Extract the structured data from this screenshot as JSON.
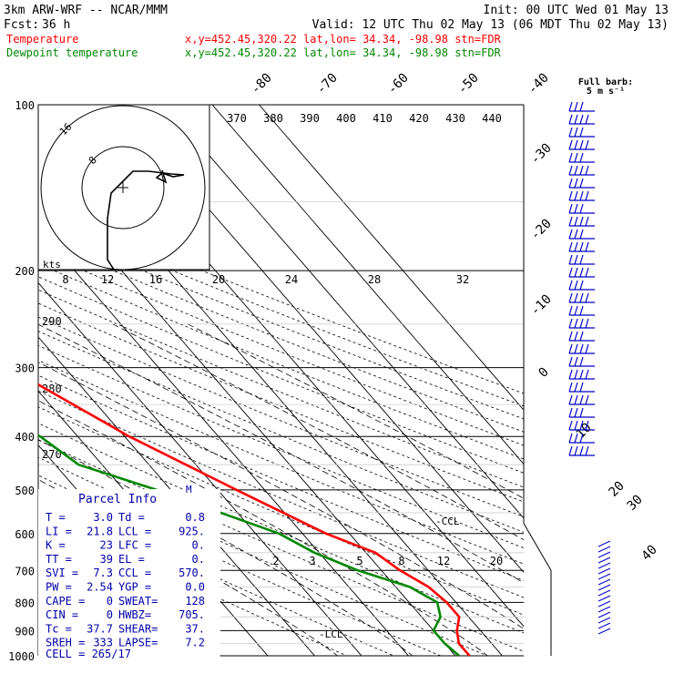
{
  "header": {
    "model": "3km ARW-WRF -- NCAR/MMM",
    "init": "Init: 00 UTC Wed 01 May 13",
    "fcst_label": "Fcst:",
    "fcst_value": "36 h",
    "valid": "Valid: 12 UTC Thu 02 May 13 (06 MDT Thu 02 May 13)",
    "temp_label": "Temperature",
    "temp_info": "x,y=452.45,320.22   lat,lon= 34.34, -98.98  stn=FDR",
    "dew_label": "Dewpoint temperature",
    "dew_info": "x,y=452.45,320.22   lat,lon= 34.34, -98.98  stn=FDR",
    "barb_title_1": "Full barb:",
    "barb_title_2": "5 m s⁻¹"
  },
  "colors": {
    "temperature": "#ff0000",
    "dewpoint": "#008800",
    "barbs": "#0000cc",
    "parcel": "#0000aa",
    "text": "#000000"
  },
  "chart_data": {
    "type": "line",
    "title": "Skew-T log-P sounding, stn=FDR",
    "pressure_levels": [
      100,
      200,
      300,
      400,
      500,
      600,
      700,
      800,
      900,
      1000
    ],
    "skewed_temp_labels": [
      "-80",
      "-70",
      "-60",
      "-50",
      "-40",
      "-30",
      "-20",
      "-10",
      "0",
      "10",
      "20",
      "30",
      "40"
    ],
    "theta_labels": [
      "290",
      "280",
      "270"
    ],
    "theta_e_labels": [
      "370",
      "380",
      "390",
      "400",
      "410",
      "420",
      "430",
      "440"
    ],
    "mixing_ratio_labels": [
      "2",
      "3",
      "5",
      "8",
      "12",
      "20"
    ],
    "series": [
      {
        "name": "Temperature",
        "points": [
          [
            100,
            -62
          ],
          [
            120,
            -60
          ],
          [
            150,
            -58
          ],
          [
            170,
            -60
          ],
          [
            200,
            -58
          ],
          [
            250,
            -50
          ],
          [
            300,
            -42
          ],
          [
            400,
            -29
          ],
          [
            500,
            -16
          ],
          [
            600,
            -5
          ],
          [
            650,
            2
          ],
          [
            700,
            4
          ],
          [
            750,
            7
          ],
          [
            800,
            8
          ],
          [
            850,
            8
          ],
          [
            900,
            5
          ],
          [
            950,
            3
          ],
          [
            1000,
            3
          ]
        ]
      },
      {
        "name": "Dewpoint temperature",
        "points": [
          [
            100,
            -75
          ],
          [
            150,
            -80
          ],
          [
            200,
            -85
          ],
          [
            250,
            -76
          ],
          [
            300,
            -62
          ],
          [
            350,
            -56
          ],
          [
            400,
            -48
          ],
          [
            450,
            -45
          ],
          [
            500,
            -33
          ],
          [
            600,
            -15
          ],
          [
            650,
            -11
          ],
          [
            700,
            -5
          ],
          [
            750,
            3
          ],
          [
            800,
            6
          ],
          [
            850,
            4
          ],
          [
            900,
            0
          ],
          [
            950,
            0
          ],
          [
            1000,
            0.8
          ]
        ]
      }
    ],
    "winds_kts": {
      "title": "kts",
      "rings": [
        "8",
        "12",
        "16",
        "20",
        "24",
        "28",
        "32"
      ],
      "speeds": [
        "8",
        "16"
      ]
    },
    "parcel_info": {
      "title": "Parcel Info",
      "M_marker": "M",
      "lcl_marker": "LCL",
      "ccl_marker": "CCL",
      "rows": [
        [
          "T  =",
          "3.0",
          "Td =",
          "0.8"
        ],
        [
          "LI =",
          "21.8",
          "LCL =",
          "925."
        ],
        [
          "K  =",
          "23",
          "LFC =",
          "0."
        ],
        [
          "TT =",
          "39",
          "EL =",
          "0."
        ],
        [
          "SVI =",
          "7.3",
          "CCL =",
          "570."
        ],
        [
          "PW =",
          "2.54",
          "YGP =",
          "0.0"
        ],
        [
          "CAPE =",
          "0",
          "SWEAT=",
          "128"
        ],
        [
          "CIN =",
          "0",
          "HWBZ=",
          "705."
        ],
        [
          "Tc =",
          "37.7",
          "SHEAR=",
          "37."
        ],
        [
          "SREH =",
          "333",
          "LAPSE=",
          "7.2"
        ]
      ],
      "cell": "CELL = 265/17"
    }
  }
}
